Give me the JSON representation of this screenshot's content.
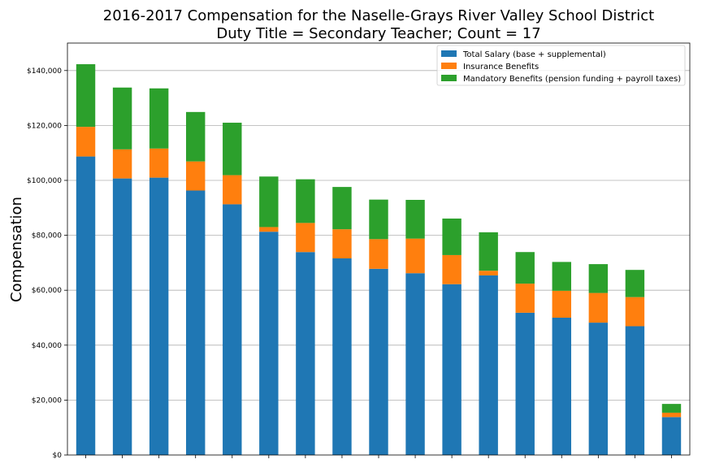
{
  "chart_data": {
    "type": "bar",
    "stacked": true,
    "title": "2016-2017 Compensation for the Naselle-Grays River Valley School District",
    "subtitle": "Duty Title = Secondary Teacher; Count = 17",
    "xlabel": "",
    "ylabel": "Compensation",
    "ylim": [
      0,
      150000
    ],
    "yticks": [
      0,
      20000,
      40000,
      60000,
      80000,
      100000,
      120000,
      140000
    ],
    "ytick_labels": [
      "$0",
      "$20,000",
      "$40,000",
      "$60,000",
      "$80,000",
      "$100,000",
      "$120,000",
      "$140,000"
    ],
    "grid": "horizontal",
    "legend_position": "top-right",
    "colors": {
      "salary": "#1f77b4",
      "insurance": "#ff7f0e",
      "mandatory": "#2ca02c"
    },
    "series": [
      {
        "name": "Total Salary (base + supplemental)",
        "color": "#1f77b4",
        "values": [
          108700,
          100700,
          101000,
          96300,
          91300,
          81300,
          73900,
          71600,
          67800,
          66200,
          62200,
          65400,
          51800,
          50000,
          48200,
          46900,
          13800
        ]
      },
      {
        "name": "Insurance Benefits",
        "color": "#ff7f0e",
        "values": [
          10800,
          10600,
          10600,
          10600,
          10600,
          1700,
          10600,
          10600,
          10800,
          12600,
          10600,
          1700,
          10600,
          9800,
          10800,
          10600,
          1600
        ]
      },
      {
        "name": "Mandatory Benefits (pension funding + payroll taxes)",
        "color": "#2ca02c",
        "values": [
          22800,
          22500,
          21900,
          18000,
          19100,
          18400,
          15900,
          15400,
          14400,
          14100,
          13300,
          14000,
          11500,
          10500,
          10500,
          9900,
          3200
        ]
      }
    ]
  }
}
